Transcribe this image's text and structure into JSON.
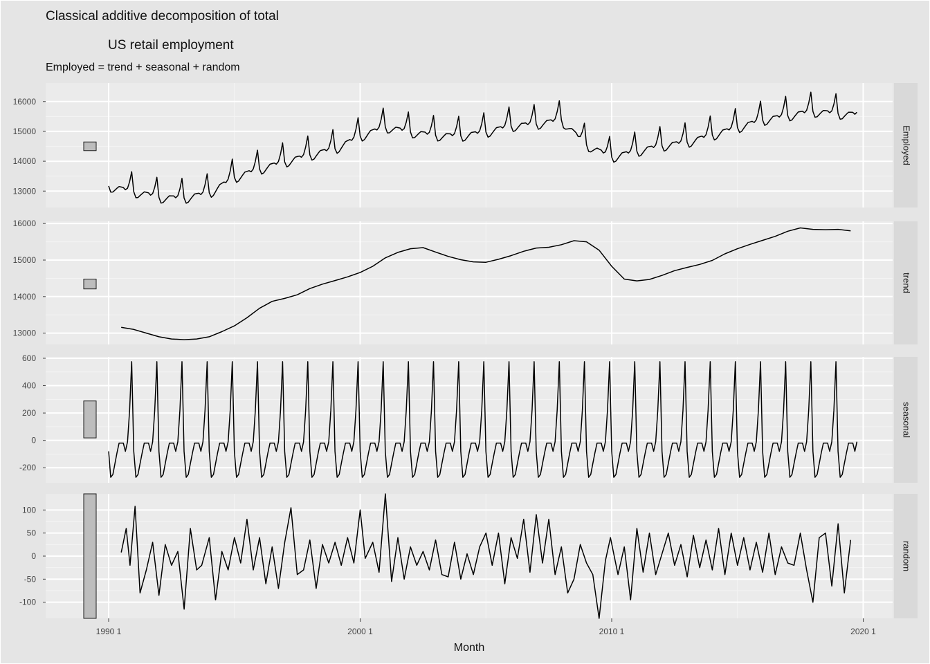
{
  "chart_data": {
    "type": "line",
    "title_line1": "Classical additive decomposition of total",
    "title_line2": "US retail employment",
    "subtitle": "Employed = trend + seasonal + random",
    "xlabel": "Month",
    "x_range": [
      1990.0,
      2019.75
    ],
    "x_ticks": [
      {
        "value": 1990,
        "label": "1990 1"
      },
      {
        "value": 2000,
        "label": "2000 1"
      },
      {
        "value": 2010,
        "label": "2010 1"
      },
      {
        "value": 2020,
        "label": "2020 1"
      }
    ],
    "panels": [
      {
        "strip": "Employed",
        "ylim": [
          12450,
          16620
        ],
        "y_ticks": [
          13000,
          14000,
          15000,
          16000
        ],
        "scale_bar": [
          14355,
          14645
        ],
        "series": {
          "name": "Employed",
          "x": [
            1990.0,
            1991.0,
            1991.5,
            1992.0,
            1993.0,
            1994.0,
            1995.0,
            1996.0,
            1997.0,
            1998.0,
            1999.0,
            2000.0,
            2001.0,
            2002.0,
            2003.0,
            2004.0,
            2005.0,
            2006.0,
            2007.0,
            2008.0,
            2009.0,
            2010.0,
            2011.0,
            2012.0,
            2013.0,
            2014.0,
            2015.0,
            2016.0,
            2017.0,
            2018.0,
            2019.0,
            2019.75
          ],
          "y": [
            13250,
            13060,
            12980,
            12870,
            12850,
            13020,
            13540,
            13820,
            14060,
            14290,
            14500,
            14920,
            15230,
            15060,
            14950,
            14930,
            15060,
            15260,
            15330,
            15460,
            14630,
            14220,
            14420,
            14600,
            14720,
            14960,
            15210,
            15460,
            15610,
            15750,
            15680,
            15650
          ]
        },
        "seasonal_amplitude": 1.0
      },
      {
        "strip": "trend",
        "ylim": [
          12690,
          16060
        ],
        "y_ticks": [
          13000,
          14000,
          15000,
          16000
        ],
        "scale_bar": [
          14210,
          14480
        ],
        "series": {
          "name": "trend",
          "x": [
            1990.5,
            1991.0,
            1991.5,
            1992.0,
            1992.5,
            1993.0,
            1993.5,
            1994.0,
            1994.5,
            1995.0,
            1995.5,
            1996.0,
            1996.5,
            1997.0,
            1997.5,
            1998.0,
            1998.5,
            1999.0,
            1999.5,
            2000.0,
            2000.5,
            2001.0,
            2001.5,
            2002.0,
            2002.5,
            2003.0,
            2003.5,
            2004.0,
            2004.5,
            2005.0,
            2005.5,
            2006.0,
            2006.5,
            2007.0,
            2007.5,
            2008.0,
            2008.5,
            2009.0,
            2009.5,
            2010.0,
            2010.5,
            2011.0,
            2011.5,
            2012.0,
            2012.5,
            2013.0,
            2013.5,
            2014.0,
            2014.5,
            2015.0,
            2015.5,
            2016.0,
            2016.5,
            2017.0,
            2017.5,
            2018.0,
            2018.5,
            2019.0,
            2019.5
          ],
          "y": [
            13160,
            13100,
            13000,
            12900,
            12840,
            12820,
            12840,
            12900,
            13040,
            13200,
            13420,
            13680,
            13870,
            13950,
            14050,
            14220,
            14340,
            14440,
            14540,
            14660,
            14830,
            15060,
            15210,
            15310,
            15340,
            15220,
            15100,
            15010,
            14950,
            14940,
            15020,
            15120,
            15240,
            15330,
            15350,
            15420,
            15530,
            15500,
            15270,
            14830,
            14480,
            14430,
            14470,
            14580,
            14710,
            14800,
            14880,
            14990,
            15170,
            15310,
            15430,
            15540,
            15650,
            15790,
            15880,
            15840,
            15830,
            15840,
            15800
          ]
        }
      },
      {
        "strip": "seasonal",
        "ylim": [
          -310,
          610
        ],
        "y_ticks": [
          -200,
          0,
          200,
          400,
          600
        ],
        "scale_bar": [
          18,
          288
        ],
        "series": {
          "name": "seasonal",
          "x_months": [
            1,
            2,
            3,
            4,
            5,
            6,
            7,
            8,
            9,
            10,
            11,
            12
          ],
          "y": [
            -80,
            -270,
            -250,
            -170,
            -90,
            -20,
            -20,
            -20,
            -80,
            -10,
            220,
            575
          ]
        }
      },
      {
        "strip": "random",
        "ylim": [
          -135,
          135
        ],
        "y_ticks": [
          -100,
          -50,
          0,
          50,
          100
        ],
        "scale_bar": [
          -135,
          135
        ],
        "series": {
          "name": "random",
          "x": [
            1990.5,
            1990.7,
            1990.85,
            1991.05,
            1991.25,
            1991.5,
            1991.75,
            1992.0,
            1992.25,
            1992.5,
            1992.75,
            1993.0,
            1993.25,
            1993.5,
            1993.7,
            1994.0,
            1994.25,
            1994.5,
            1994.75,
            1995.0,
            1995.25,
            1995.5,
            1995.75,
            1996.0,
            1996.25,
            1996.5,
            1996.75,
            1997.0,
            1997.25,
            1997.5,
            1997.75,
            1998.0,
            1998.25,
            1998.5,
            1998.75,
            1999.0,
            1999.25,
            1999.5,
            1999.75,
            2000.0,
            2000.2,
            2000.5,
            2000.75,
            2001.0,
            2001.25,
            2001.5,
            2001.75,
            2002.0,
            2002.25,
            2002.5,
            2002.75,
            2003.0,
            2003.25,
            2003.5,
            2003.75,
            2004.0,
            2004.25,
            2004.5,
            2004.75,
            2005.0,
            2005.25,
            2005.5,
            2005.75,
            2006.0,
            2006.25,
            2006.5,
            2006.75,
            2007.0,
            2007.25,
            2007.5,
            2007.75,
            2008.0,
            2008.25,
            2008.5,
            2008.75,
            2009.0,
            2009.25,
            2009.5,
            2009.75,
            2009.95,
            2010.25,
            2010.5,
            2010.75,
            2011.0,
            2011.25,
            2011.5,
            2011.75,
            2012.0,
            2012.25,
            2012.5,
            2012.75,
            2013.0,
            2013.25,
            2013.5,
            2013.75,
            2014.0,
            2014.25,
            2014.5,
            2014.75,
            2015.0,
            2015.25,
            2015.5,
            2015.75,
            2016.0,
            2016.25,
            2016.5,
            2016.75,
            2017.0,
            2017.25,
            2017.5,
            2017.75,
            2018.0,
            2018.25,
            2018.5,
            2018.75,
            2019.0,
            2019.25,
            2019.5
          ],
          "y": [
            8,
            60,
            -20,
            108,
            -80,
            -30,
            30,
            -85,
            25,
            -20,
            10,
            -115,
            60,
            -30,
            -20,
            40,
            -95,
            10,
            -30,
            40,
            -15,
            80,
            -30,
            40,
            -60,
            20,
            -70,
            30,
            105,
            -40,
            -30,
            35,
            -70,
            25,
            -15,
            30,
            -20,
            40,
            -15,
            100,
            -5,
            30,
            -35,
            135,
            -55,
            40,
            -50,
            20,
            -20,
            10,
            -30,
            35,
            -40,
            -45,
            30,
            -50,
            5,
            -40,
            20,
            50,
            -20,
            50,
            -60,
            40,
            -5,
            80,
            -35,
            90,
            -15,
            80,
            -40,
            20,
            -80,
            -50,
            25,
            -15,
            -40,
            -135,
            -10,
            40,
            -40,
            20,
            -95,
            60,
            -35,
            50,
            -40,
            5,
            50,
            -20,
            25,
            -45,
            45,
            -25,
            35,
            -30,
            60,
            -40,
            50,
            -20,
            40,
            -30,
            30,
            -35,
            50,
            -40,
            20,
            -15,
            -20,
            50,
            -30,
            -100,
            40,
            50,
            -65,
            70,
            -80,
            35
          ]
        }
      }
    ],
    "grid": true,
    "legend": "none"
  }
}
